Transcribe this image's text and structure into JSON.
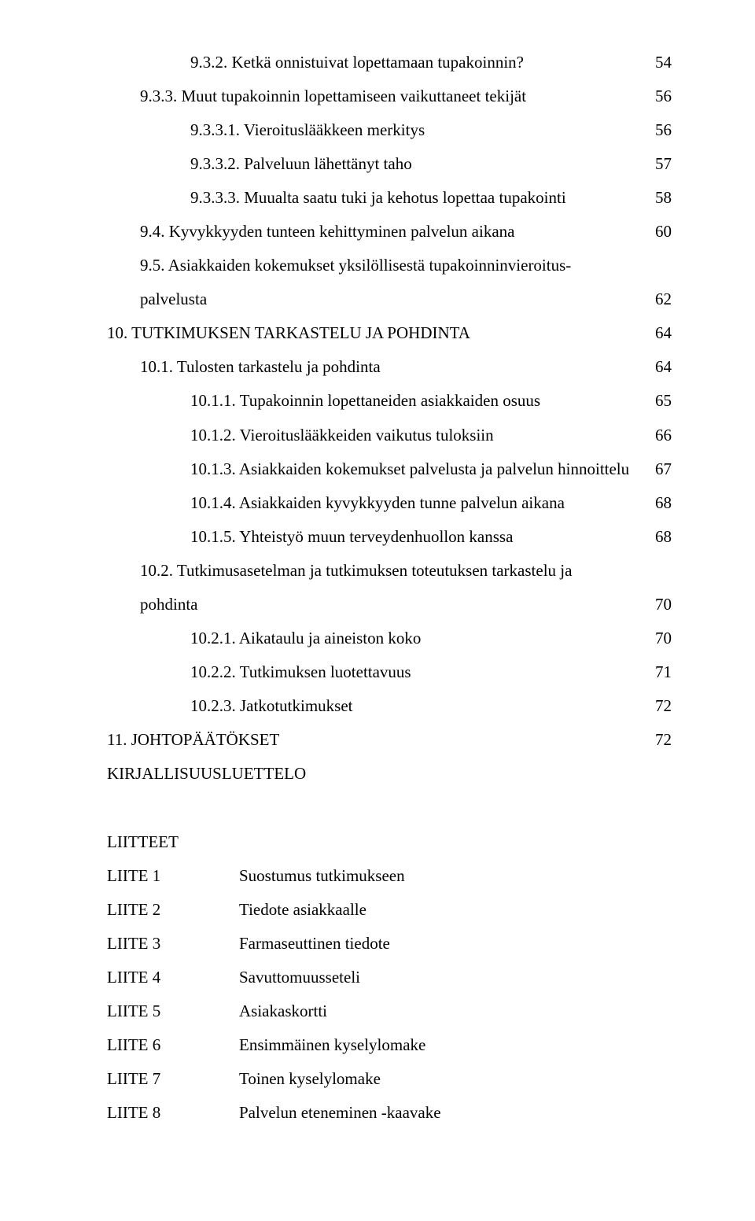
{
  "toc": [
    {
      "indent": "indent-3",
      "text": "9.3.2. Ketkä onnistuivat lopettamaan tupakoinnin?",
      "page": "54"
    },
    {
      "indent": "indent-2",
      "text": "9.3.3. Muut tupakoinnin lopettamiseen vaikuttaneet tekijät",
      "page": "56"
    },
    {
      "indent": "indent-3",
      "text": "9.3.3.1. Vieroituslääkkeen merkitys",
      "page": "56"
    },
    {
      "indent": "indent-3",
      "text": "9.3.3.2. Palveluun lähettänyt taho",
      "page": "57"
    },
    {
      "indent": "indent-3",
      "text": "9.3.3.3. Muualta saatu tuki ja kehotus lopettaa tupakointi",
      "page": "58"
    },
    {
      "indent": "indent-2",
      "text": "9.4. Kyvykkyyden tunteen kehittyminen palvelun aikana",
      "page": "60"
    },
    {
      "indent": "indent-2",
      "multi": true,
      "text1": "9.5. Asiakkaiden kokemukset yksilöllisestä tupakoinninvieroitus-",
      "text2": "palvelusta",
      "page": "62"
    },
    {
      "indent": "no-indent",
      "text": "10. TUTKIMUKSEN TARKASTELU JA POHDINTA",
      "page": "64"
    },
    {
      "indent": "indent-2",
      "text": "10.1. Tulosten tarkastelu ja pohdinta",
      "page": "64"
    },
    {
      "indent": "indent-3",
      "text": "10.1.1. Tupakoinnin lopettaneiden asiakkaiden osuus",
      "page": "65"
    },
    {
      "indent": "indent-3",
      "text": "10.1.2. Vieroituslääkkeiden vaikutus tuloksiin",
      "page": "66"
    },
    {
      "indent": "indent-3",
      "text": "10.1.3. Asiakkaiden kokemukset palvelusta ja palvelun hinnoittelu",
      "page": "67"
    },
    {
      "indent": "indent-3",
      "text": "10.1.4. Asiakkaiden kyvykkyyden tunne palvelun aikana",
      "page": "68"
    },
    {
      "indent": "indent-3",
      "text": "10.1.5. Yhteistyö muun terveydenhuollon kanssa",
      "page": "68"
    },
    {
      "indent": "indent-2",
      "multi": true,
      "text1": "10.2.  Tutkimusasetelman ja tutkimuksen toteutuksen tarkastelu ja",
      "text2": "pohdinta",
      "page": "70"
    },
    {
      "indent": "indent-3",
      "text": "10.2.1. Aikataulu ja aineiston koko",
      "page": "70"
    },
    {
      "indent": "indent-3",
      "text": "10.2.2. Tutkimuksen luotettavuus",
      "page": "71"
    },
    {
      "indent": "indent-3",
      "text": "10.2.3. Jatkotutkimukset",
      "page": "72"
    },
    {
      "indent": "no-indent",
      "text": "11. JOHTOPÄÄTÖKSET",
      "page": "72"
    },
    {
      "indent": "no-indent",
      "text": "KIRJALLISUUSLUETTELO",
      "page": ""
    }
  ],
  "liitteet_heading": "LIITTEET",
  "liitteet": [
    {
      "label": "LIITE 1",
      "desc": "Suostumus tutkimukseen"
    },
    {
      "label": "LIITE 2",
      "desc": "Tiedote asiakkaalle"
    },
    {
      "label": "LIITE 3",
      "desc": "Farmaseuttinen tiedote"
    },
    {
      "label": "LIITE 4",
      "desc": "Savuttomuusseteli"
    },
    {
      "label": "LIITE 5",
      "desc": "Asiakaskortti"
    },
    {
      "label": "LIITE 6",
      "desc": "Ensimmäinen kyselylomake"
    },
    {
      "label": "LIITE 7",
      "desc": "Toinen kyselylomake"
    },
    {
      "label": "LIITE 8",
      "desc": "Palvelun eteneminen -kaavake"
    }
  ]
}
